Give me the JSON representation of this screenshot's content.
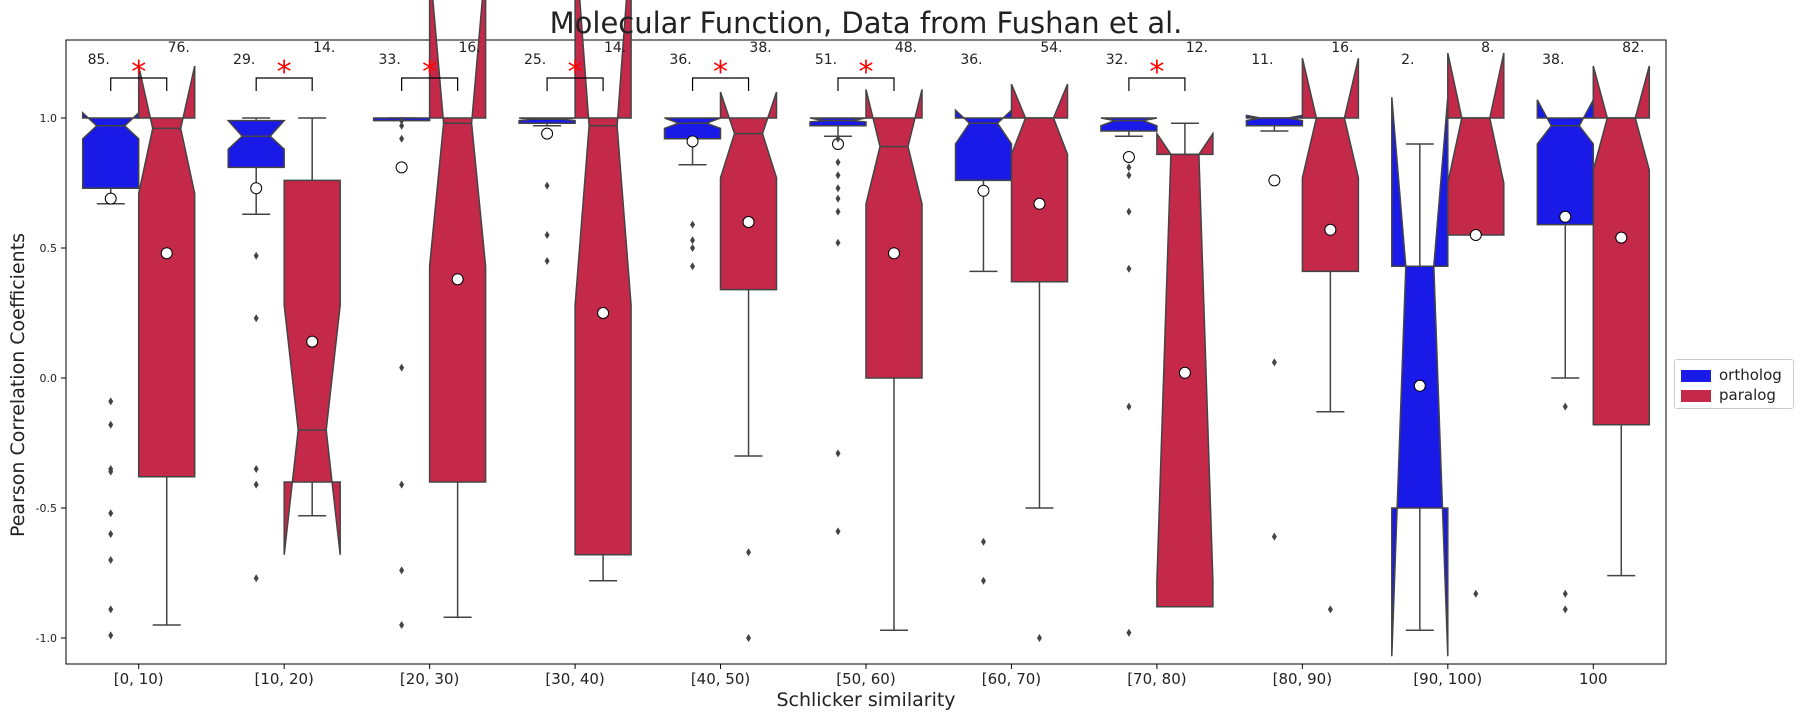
{
  "chart_data": {
    "type": "box",
    "title": "Molecular Function, Data from Fushan et al.",
    "xlabel": "Schlicker similarity",
    "ylabel": "Pearson Correlation Coefficients",
    "ylim": [
      -1.1,
      1.3
    ],
    "yticks": [
      "1.0",
      "0.5",
      "0.0",
      "-0.5",
      "-1.0"
    ],
    "ytick_values": [
      1.0,
      0.5,
      0.0,
      -0.5,
      -1.0
    ],
    "categories": [
      "[0, 10)",
      "[10, 20)",
      "[20, 30)",
      "[30, 40)",
      "[40, 50)",
      "[50, 60)",
      "[60, 70)",
      "[70, 80)",
      "[80, 90)",
      "[90, 100)",
      "100"
    ],
    "legend_position": "right",
    "series": [
      {
        "name": "ortholog",
        "color": "#1a1ae8",
        "counts": [
          "85.",
          "29.",
          "33.",
          "25.",
          "36.",
          "51.",
          "36.",
          "32.",
          "11.",
          "2.",
          "38."
        ],
        "q1": [
          0.73,
          0.81,
          0.99,
          0.98,
          0.92,
          0.97,
          0.76,
          0.95,
          0.97,
          -0.5,
          0.59
        ],
        "median": [
          0.97,
          0.93,
          1.0,
          0.995,
          0.98,
          0.99,
          0.98,
          0.99,
          1.0,
          0.43,
          0.97
        ],
        "q3": [
          1.0,
          0.99,
          1.0,
          1.0,
          1.0,
          1.0,
          1.0,
          1.0,
          1.0,
          0.43,
          1.0
        ],
        "whisker_low": [
          0.67,
          0.63,
          0.99,
          0.97,
          0.82,
          0.93,
          0.41,
          0.93,
          0.95,
          -0.97,
          0.0
        ],
        "whisker_high": [
          1.0,
          1.0,
          1.0,
          1.0,
          1.0,
          1.0,
          1.0,
          1.0,
          1.0,
          0.9,
          1.0
        ],
        "notch_low": [
          0.92,
          0.88,
          1.0,
          0.99,
          0.96,
          0.985,
          0.9,
          0.97,
          0.99,
          -1.07,
          0.9
        ],
        "notch_high": [
          1.02,
          0.99,
          1.0,
          1.0,
          1.0,
          1.0,
          1.03,
          1.0,
          1.01,
          1.08,
          1.07
        ],
        "mean": [
          0.69,
          0.73,
          0.81,
          0.94,
          0.91,
          0.9,
          0.72,
          0.85,
          0.76,
          -0.03,
          0.62
        ],
        "outliers": [
          [
            -0.09,
            -0.18,
            -0.35,
            -0.36,
            -0.52,
            -0.6,
            -0.7,
            -0.89,
            -0.99
          ],
          [
            0.47,
            0.23,
            -0.35,
            -0.41,
            -0.77
          ],
          [
            0.99,
            0.97,
            0.92,
            0.04,
            -0.41,
            -0.74,
            -0.95
          ],
          [
            0.74,
            0.55,
            0.45
          ],
          [
            0.59,
            0.53,
            0.5,
            0.43
          ],
          [
            0.92,
            0.83,
            0.78,
            0.73,
            0.69,
            0.64,
            0.52,
            -0.29,
            -0.59
          ],
          [
            -0.63,
            -0.78
          ],
          [
            0.81,
            0.78,
            0.64,
            0.42,
            -0.11,
            -0.98
          ],
          [
            0.06,
            -0.61
          ],
          [],
          [
            -0.11,
            -0.83,
            -0.89
          ]
        ]
      },
      {
        "name": "paralog",
        "color": "#c4294a",
        "counts": [
          "76.",
          "14.",
          "16.",
          "14.",
          "38.",
          "48.",
          "54.",
          "12.",
          "16.",
          "8.",
          "82."
        ],
        "q1": [
          -0.38,
          -0.4,
          -0.4,
          -0.68,
          0.34,
          0.0,
          0.37,
          -0.88,
          0.41,
          0.55,
          -0.18
        ],
        "median": [
          0.96,
          -0.2,
          0.98,
          0.97,
          0.94,
          0.89,
          1.0,
          0.86,
          1.0,
          1.0,
          1.0
        ],
        "q3": [
          1.0,
          0.76,
          1.0,
          1.0,
          1.0,
          1.0,
          1.0,
          0.86,
          1.0,
          1.0,
          1.0
        ],
        "whisker_low": [
          -0.95,
          -0.53,
          -0.92,
          -0.78,
          -0.3,
          -0.97,
          -0.5,
          -0.88,
          -0.13,
          0.55,
          -0.76
        ],
        "whisker_high": [
          1.0,
          1.0,
          1.0,
          1.0,
          1.0,
          1.0,
          1.0,
          0.98,
          1.0,
          1.0,
          1.0
        ],
        "notch_low": [
          0.71,
          -0.68,
          0.43,
          0.28,
          0.77,
          0.67,
          0.86,
          -0.78,
          0.77,
          0.75,
          0.8
        ],
        "notch_high": [
          1.2,
          0.28,
          1.6,
          1.7,
          1.1,
          1.11,
          1.13,
          0.94,
          1.23,
          1.25,
          1.2
        ],
        "mean": [
          0.48,
          0.14,
          0.38,
          0.25,
          0.6,
          0.48,
          0.67,
          0.02,
          0.57,
          0.55,
          0.54
        ],
        "outliers": [
          [],
          [],
          [],
          [],
          [
            -0.67,
            -1.0
          ],
          [],
          [
            -1.0
          ],
          [],
          [
            -0.89
          ],
          [
            -0.83
          ],
          []
        ]
      }
    ],
    "significance": [
      true,
      true,
      true,
      true,
      true,
      true,
      false,
      true,
      false,
      false,
      false
    ],
    "significance_marker": "*"
  }
}
